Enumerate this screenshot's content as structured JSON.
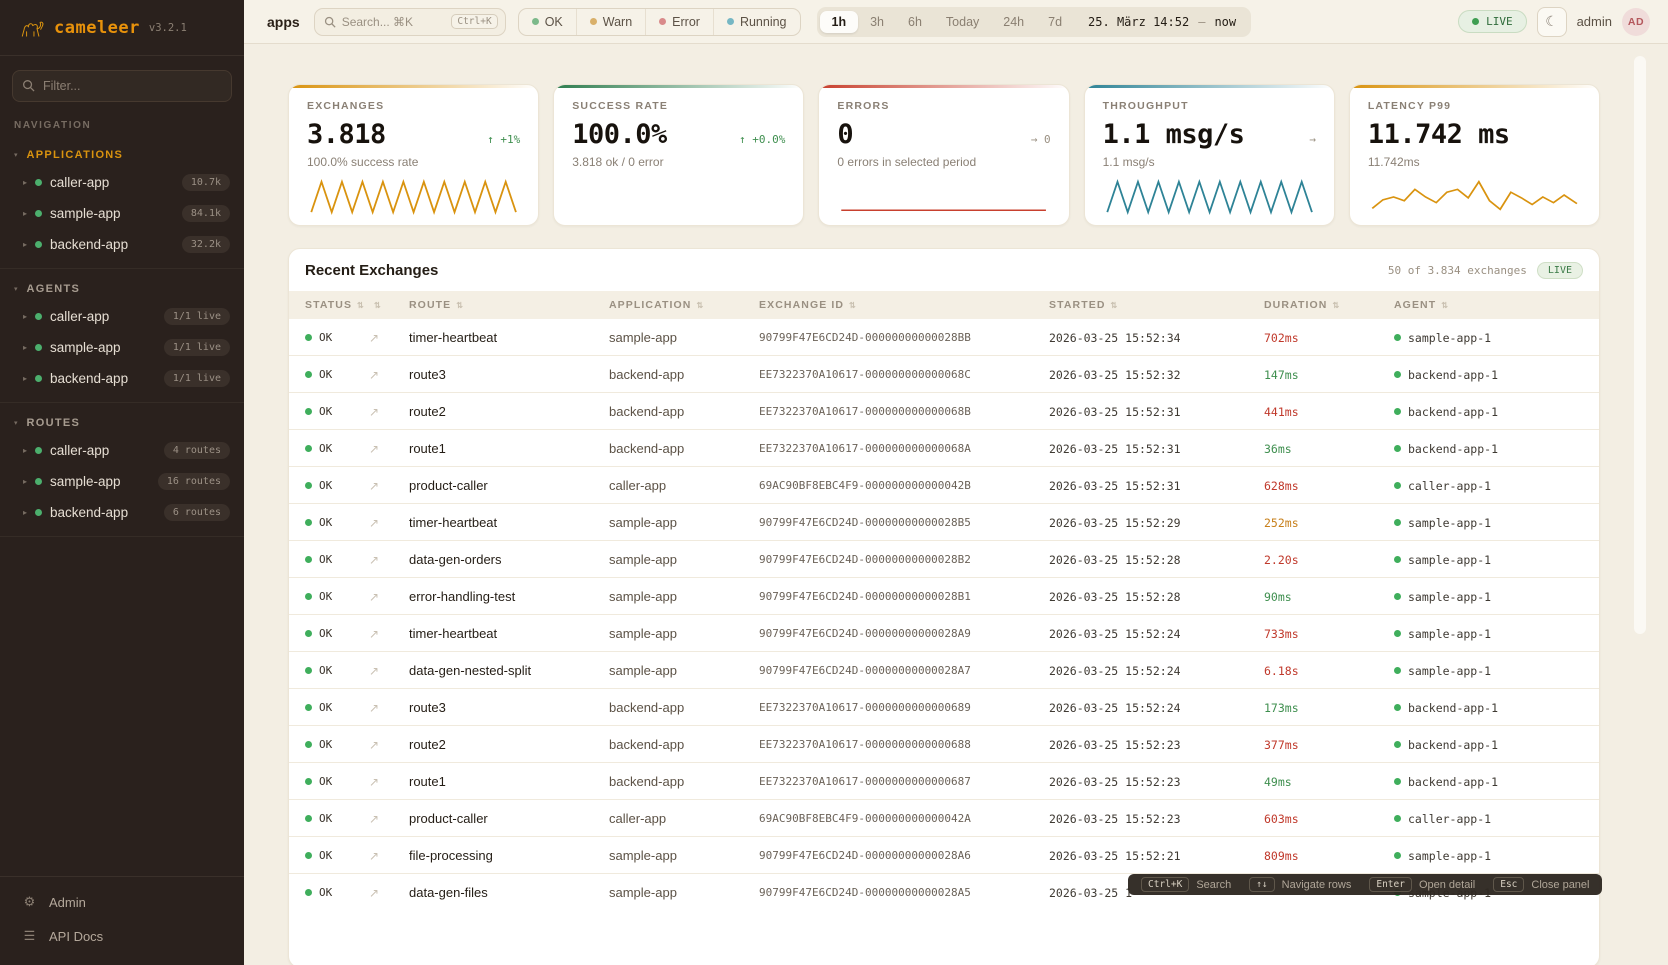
{
  "app": {
    "name": "cameleer",
    "version": "v3.2.1"
  },
  "colors": {
    "brand_orange": "#d9930f",
    "green": "#3f8f4f",
    "red": "#c0392b",
    "amber": "#c77f1a",
    "teal": "#2e8396",
    "sidebar_bg": "#2a211d",
    "main_bg": "#f3eee3"
  },
  "sidebar": {
    "filter_placeholder": "Filter...",
    "nav_label": "NAVIGATION",
    "sections": [
      {
        "label": "APPLICATIONS",
        "accent": true,
        "items": [
          {
            "name": "caller-app",
            "badge": "10.7k"
          },
          {
            "name": "sample-app",
            "badge": "84.1k"
          },
          {
            "name": "backend-app",
            "badge": "32.2k"
          }
        ]
      },
      {
        "label": "AGENTS",
        "accent": false,
        "items": [
          {
            "name": "caller-app",
            "badge": "1/1 live"
          },
          {
            "name": "sample-app",
            "badge": "1/1 live"
          },
          {
            "name": "backend-app",
            "badge": "1/1 live"
          }
        ]
      },
      {
        "label": "ROUTES",
        "accent": false,
        "items": [
          {
            "name": "caller-app",
            "badge": "4 routes"
          },
          {
            "name": "sample-app",
            "badge": "16 routes"
          },
          {
            "name": "backend-app",
            "badge": "6 routes"
          }
        ]
      }
    ],
    "footer": [
      {
        "label": "Admin",
        "icon": "gear-icon"
      },
      {
        "label": "API Docs",
        "icon": "list-icon"
      }
    ]
  },
  "topbar": {
    "page_label": "apps",
    "search": {
      "placeholder": "Search... ⌘K",
      "shortcut": "Ctrl+K"
    },
    "status_filters": [
      {
        "label": "OK",
        "color": "#7cb98a"
      },
      {
        "label": "Warn",
        "color": "#d9b06a"
      },
      {
        "label": "Error",
        "color": "#d98a8a"
      },
      {
        "label": "Running",
        "color": "#76b7c4"
      }
    ],
    "time_ranges": [
      {
        "label": "1h",
        "active": true
      },
      {
        "label": "3h",
        "active": false
      },
      {
        "label": "6h",
        "active": false
      },
      {
        "label": "Today",
        "active": false
      },
      {
        "label": "24h",
        "active": false
      },
      {
        "label": "7d",
        "active": false
      }
    ],
    "time_display": {
      "start": "25. März 14:52",
      "separator": "—",
      "end": "now"
    },
    "live_label": "LIVE",
    "user": {
      "name": "admin",
      "initials": "AD"
    }
  },
  "metric_cards": [
    {
      "id": "exchanges",
      "label": "EXCHANGES",
      "value": "3.818",
      "trend": "↑ +1%",
      "trend_type": "up",
      "subtitle": "100.0% success rate",
      "accent": "#d9930f",
      "spark_color": "#d9930f",
      "sparkline": "zigzag"
    },
    {
      "id": "success-rate",
      "label": "SUCCESS RATE",
      "value": "100.0%",
      "trend": "↑ +0.0%",
      "trend_type": "up",
      "subtitle": "3.818 ok / 0 error",
      "accent": "#2e7d4f",
      "spark_color": "#2e7d4f",
      "sparkline": "none"
    },
    {
      "id": "errors",
      "label": "ERRORS",
      "value": "0",
      "trend": "→ 0",
      "trend_type": "flat",
      "subtitle": "0 errors in selected period",
      "accent": "#c8402e",
      "spark_color": "#c8402e",
      "sparkline": "flat"
    },
    {
      "id": "throughput",
      "label": "THROUGHPUT",
      "value": "1.1 msg/s",
      "trend": "→",
      "trend_type": "flat",
      "subtitle": "1.1 msg/s",
      "accent": "#2e8396",
      "spark_color": "#2e8396",
      "sparkline": "zigzag"
    },
    {
      "id": "latency-p99",
      "label": "LATENCY P99",
      "value": "11.742 ms",
      "trend": "",
      "trend_type": "flat",
      "subtitle": "11.742ms",
      "accent": "#d9930f",
      "spark_color": "#d9930f",
      "sparkline": "irregular"
    }
  ],
  "table": {
    "title": "Recent Exchanges",
    "summary": "50 of 3.834 exchanges",
    "live_label": "LIVE",
    "columns": [
      "STATUS",
      "",
      "ROUTE",
      "APPLICATION",
      "EXCHANGE ID",
      "STARTED",
      "DURATION",
      "AGENT"
    ],
    "rows": [
      {
        "status": "OK",
        "route": "timer-heartbeat",
        "application": "sample-app",
        "exchange_id": "90799F47E6CD24D-00000000000028BB",
        "started": "2026-03-25 15:52:34",
        "duration": "702ms",
        "duration_color": "red",
        "agent": "sample-app-1"
      },
      {
        "status": "OK",
        "route": "route3",
        "application": "backend-app",
        "exchange_id": "EE7322370A10617-000000000000068C",
        "started": "2026-03-25 15:52:32",
        "duration": "147ms",
        "duration_color": "green",
        "agent": "backend-app-1"
      },
      {
        "status": "OK",
        "route": "route2",
        "application": "backend-app",
        "exchange_id": "EE7322370A10617-000000000000068B",
        "started": "2026-03-25 15:52:31",
        "duration": "441ms",
        "duration_color": "red",
        "agent": "backend-app-1"
      },
      {
        "status": "OK",
        "route": "route1",
        "application": "backend-app",
        "exchange_id": "EE7322370A10617-000000000000068A",
        "started": "2026-03-25 15:52:31",
        "duration": "36ms",
        "duration_color": "green",
        "agent": "backend-app-1"
      },
      {
        "status": "OK",
        "route": "product-caller",
        "application": "caller-app",
        "exchange_id": "69AC90BF8EBC4F9-000000000000042B",
        "started": "2026-03-25 15:52:31",
        "duration": "628ms",
        "duration_color": "red",
        "agent": "caller-app-1"
      },
      {
        "status": "OK",
        "route": "timer-heartbeat",
        "application": "sample-app",
        "exchange_id": "90799F47E6CD24D-00000000000028B5",
        "started": "2026-03-25 15:52:29",
        "duration": "252ms",
        "duration_color": "amber",
        "agent": "sample-app-1"
      },
      {
        "status": "OK",
        "route": "data-gen-orders",
        "application": "sample-app",
        "exchange_id": "90799F47E6CD24D-00000000000028B2",
        "started": "2026-03-25 15:52:28",
        "duration": "2.20s",
        "duration_color": "red",
        "agent": "sample-app-1"
      },
      {
        "status": "OK",
        "route": "error-handling-test",
        "application": "sample-app",
        "exchange_id": "90799F47E6CD24D-00000000000028B1",
        "started": "2026-03-25 15:52:28",
        "duration": "90ms",
        "duration_color": "green",
        "agent": "sample-app-1"
      },
      {
        "status": "OK",
        "route": "timer-heartbeat",
        "application": "sample-app",
        "exchange_id": "90799F47E6CD24D-00000000000028A9",
        "started": "2026-03-25 15:52:24",
        "duration": "733ms",
        "duration_color": "red",
        "agent": "sample-app-1"
      },
      {
        "status": "OK",
        "route": "data-gen-nested-split",
        "application": "sample-app",
        "exchange_id": "90799F47E6CD24D-00000000000028A7",
        "started": "2026-03-25 15:52:24",
        "duration": "6.18s",
        "duration_color": "red",
        "agent": "sample-app-1"
      },
      {
        "status": "OK",
        "route": "route3",
        "application": "backend-app",
        "exchange_id": "EE7322370A10617-0000000000000689",
        "started": "2026-03-25 15:52:24",
        "duration": "173ms",
        "duration_color": "green",
        "agent": "backend-app-1"
      },
      {
        "status": "OK",
        "route": "route2",
        "application": "backend-app",
        "exchange_id": "EE7322370A10617-0000000000000688",
        "started": "2026-03-25 15:52:23",
        "duration": "377ms",
        "duration_color": "red",
        "agent": "backend-app-1"
      },
      {
        "status": "OK",
        "route": "route1",
        "application": "backend-app",
        "exchange_id": "EE7322370A10617-0000000000000687",
        "started": "2026-03-25 15:52:23",
        "duration": "49ms",
        "duration_color": "green",
        "agent": "backend-app-1"
      },
      {
        "status": "OK",
        "route": "product-caller",
        "application": "caller-app",
        "exchange_id": "69AC90BF8EBC4F9-000000000000042A",
        "started": "2026-03-25 15:52:23",
        "duration": "603ms",
        "duration_color": "red",
        "agent": "caller-app-1"
      },
      {
        "status": "OK",
        "route": "file-processing",
        "application": "sample-app",
        "exchange_id": "90799F47E6CD24D-00000000000028A6",
        "started": "2026-03-25 15:52:21",
        "duration": "809ms",
        "duration_color": "red",
        "agent": "sample-app-1"
      },
      {
        "status": "OK",
        "route": "data-gen-files",
        "application": "sample-app",
        "exchange_id": "90799F47E6CD24D-00000000000028A5",
        "started": "2026-03-25 1",
        "duration": "",
        "duration_color": "green",
        "agent": "sample-app-1"
      }
    ]
  },
  "shortcut_bar": [
    {
      "keys": "Ctrl+K",
      "label": "Search"
    },
    {
      "keys": "↑↓",
      "label": "Navigate rows"
    },
    {
      "keys": "Enter",
      "label": "Open detail"
    },
    {
      "keys": "Esc",
      "label": "Close panel"
    }
  ]
}
